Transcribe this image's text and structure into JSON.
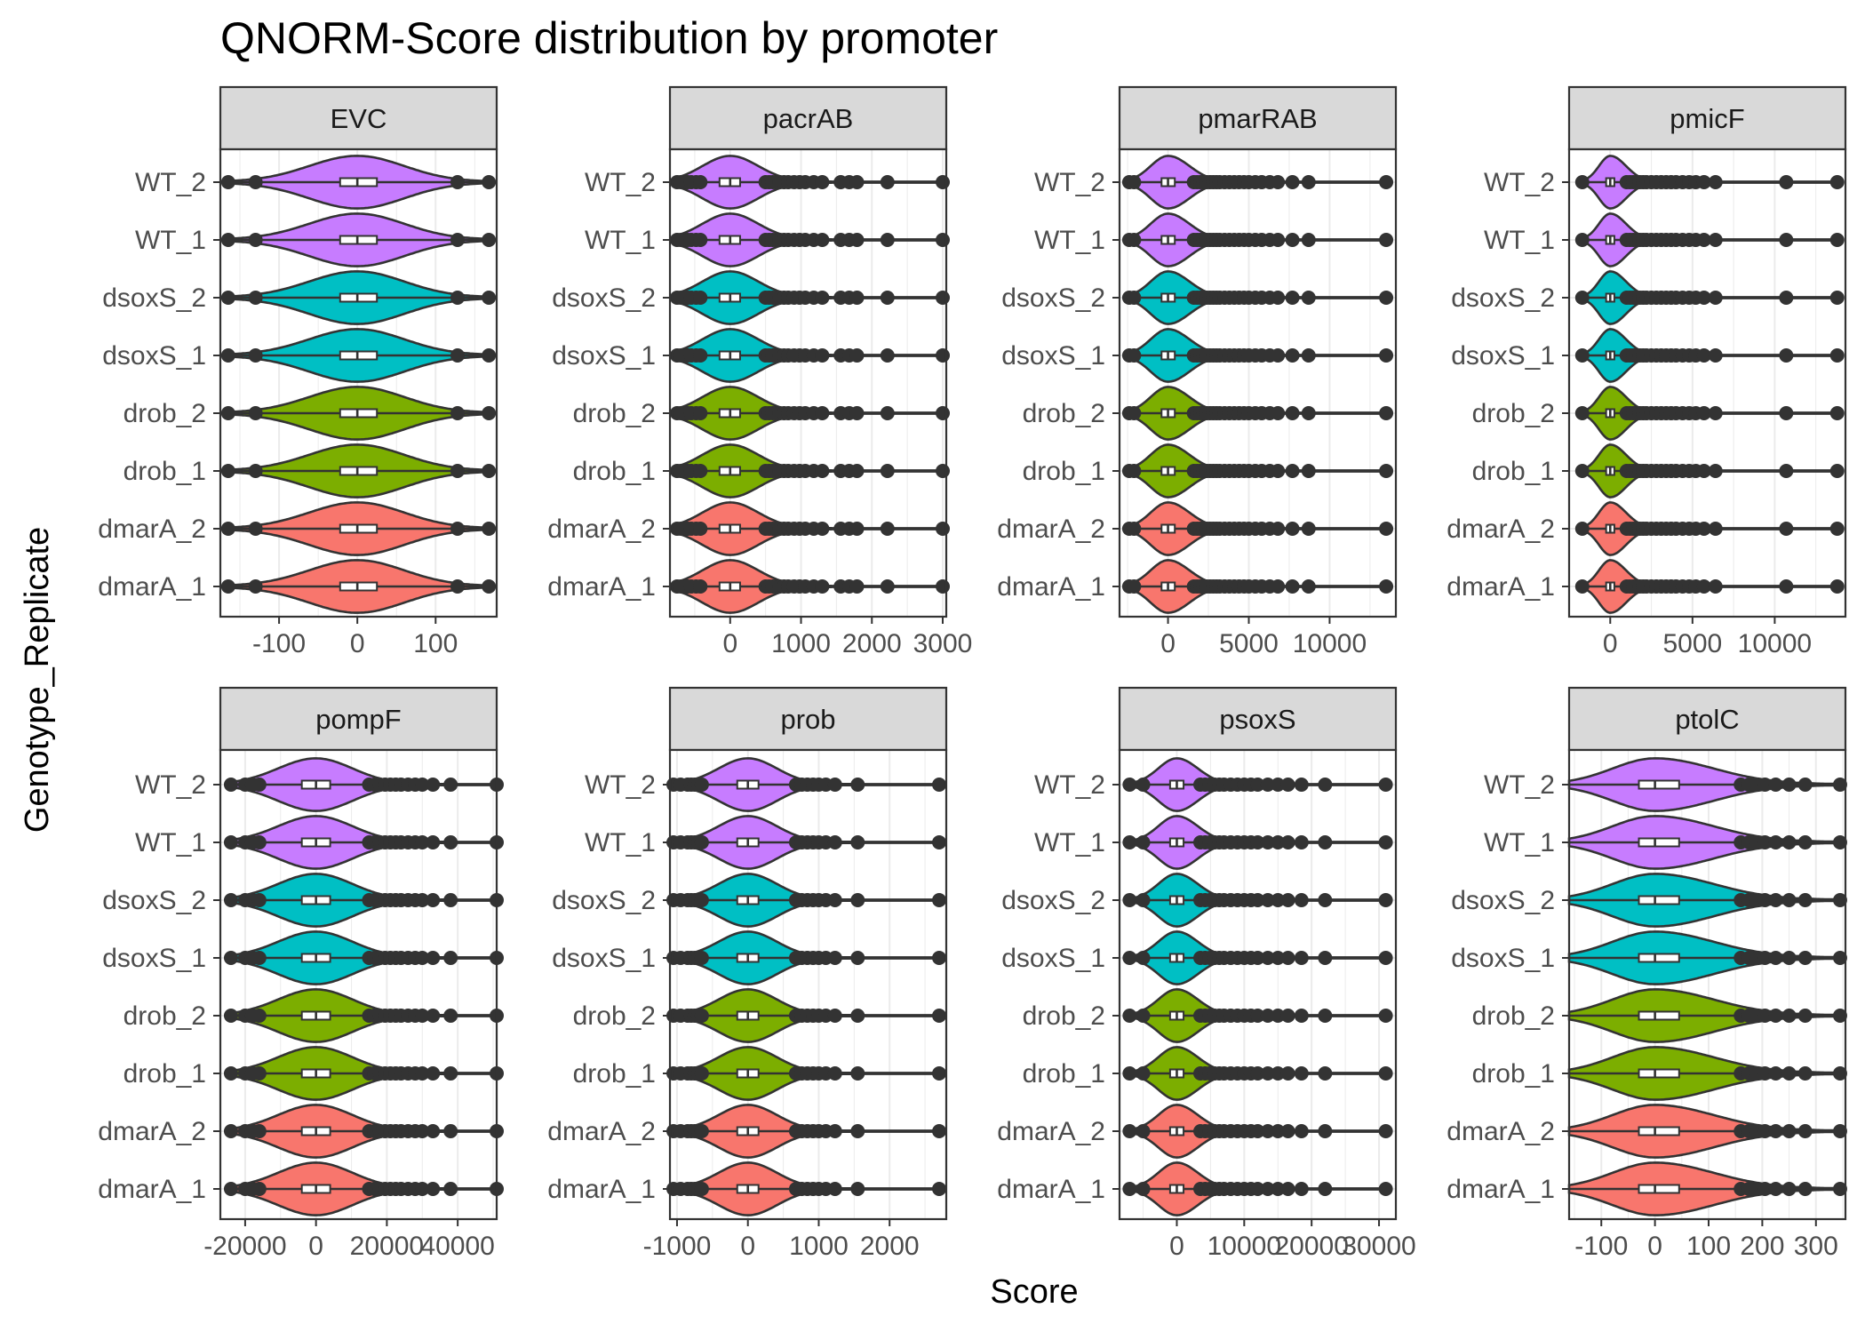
{
  "chart_data": {
    "type": "violin",
    "title": "QNORM-Score distribution by promoter",
    "xlabel": "Score",
    "ylabel": "Genotype_Replicate",
    "categories": [
      "dmarA_1",
      "dmarA_2",
      "drob_1",
      "drob_2",
      "dsoxS_1",
      "dsoxS_2",
      "WT_1",
      "WT_2"
    ],
    "genotype_colors": {
      "dmarA": "#f8766d",
      "drob": "#7cae00",
      "dsoxS": "#00bfc4",
      "WT": "#c77cff"
    },
    "grid": true,
    "legend": "none",
    "panels": [
      {
        "name": "EVC",
        "xlim": [
          -175,
          178
        ],
        "xticks": [
          -100,
          0,
          100
        ],
        "xtick_labels": [
          "-100",
          "0",
          "100"
        ],
        "width_scale": 0.78,
        "violin_lo": -165,
        "violin_hi": 168,
        "q1": -22,
        "median": 0,
        "q3": 25,
        "outliers": [
          -165,
          -130,
          128,
          168
        ]
      },
      {
        "name": "pacrAB",
        "xlim": [
          -850,
          3050
        ],
        "xticks": [
          0,
          1000,
          2000,
          3000
        ],
        "xtick_labels": [
          "0",
          "1000",
          "2000",
          "3000"
        ],
        "width_scale": 0.28,
        "violin_lo": -750,
        "violin_hi": 3000,
        "q1": -150,
        "median": 0,
        "q3": 140,
        "outliers": [
          -750,
          -700,
          -600,
          -550,
          -480,
          -420,
          500,
          550,
          600,
          650,
          700,
          760,
          820,
          900,
          980,
          1060,
          1180,
          1300,
          1560,
          1680,
          1790,
          2220,
          3000
        ]
      },
      {
        "name": "pmarRAB",
        "xlim": [
          -3000,
          14100
        ],
        "xticks": [
          0,
          5000,
          10000
        ],
        "xtick_labels": [
          "0",
          "5000",
          "10000"
        ],
        "width_scale": 0.19,
        "violin_lo": -2400,
        "violin_hi": 13500,
        "q1": -400,
        "median": 0,
        "q3": 420,
        "outliers": [
          -2400,
          -2100,
          1600,
          1800,
          2000,
          2200,
          2400,
          2600,
          2800,
          3000,
          3200,
          3500,
          3800,
          4100,
          4400,
          4700,
          5000,
          5400,
          5800,
          6300,
          6800,
          7700,
          8700,
          13500
        ]
      },
      {
        "name": "pmicF",
        "xlim": [
          -2500,
          14300
        ],
        "xticks": [
          0,
          5000,
          10000
        ],
        "xtick_labels": [
          "0",
          "5000",
          "10000"
        ],
        "width_scale": 0.15,
        "violin_lo": -1700,
        "violin_hi": 13800,
        "q1": -250,
        "median": 0,
        "q3": 250,
        "outliers": [
          -1700,
          1000,
          1200,
          1400,
          1600,
          1800,
          2000,
          2200,
          2500,
          2800,
          3100,
          3400,
          3700,
          4000,
          4400,
          4800,
          5200,
          5700,
          6400,
          10700,
          13800
        ]
      },
      {
        "name": "pompF",
        "xlim": [
          -27000,
          51000
        ],
        "xticks": [
          -20000,
          0,
          20000,
          40000
        ],
        "xtick_labels": [
          "-20000",
          "0",
          "20000",
          "40000"
        ],
        "width_scale": 0.36,
        "violin_lo": -24000,
        "violin_hi": 51000,
        "q1": -4000,
        "median": 0,
        "q3": 4000,
        "outliers": [
          -24000,
          -20000,
          -18000,
          -16000,
          15000,
          16500,
          18000,
          19500,
          21000,
          22500,
          24000,
          26000,
          28000,
          30000,
          33000,
          38000,
          51000
        ]
      },
      {
        "name": "prob",
        "xlim": [
          -1100,
          2800
        ],
        "xticks": [
          -1000,
          0,
          1000,
          2000
        ],
        "xtick_labels": [
          "-1000",
          "0",
          "1000",
          "2000"
        ],
        "width_scale": 0.38,
        "violin_lo": -1050,
        "violin_hi": 2700,
        "q1": -150,
        "median": 0,
        "q3": 150,
        "outliers": [
          -1050,
          -950,
          -850,
          -800,
          -750,
          -700,
          -650,
          680,
          760,
          840,
          920,
          1000,
          1100,
          1230,
          1550,
          2700
        ]
      },
      {
        "name": "psoxS",
        "xlim": [
          -8500,
          32500
        ],
        "xticks": [
          0,
          10000,
          20000,
          30000
        ],
        "xtick_labels": [
          "0",
          "10000",
          "20000",
          "30000"
        ],
        "width_scale": 0.17,
        "violin_lo": -7000,
        "violin_hi": 31000,
        "q1": -1000,
        "median": 0,
        "q3": 1000,
        "outliers": [
          -7000,
          -5000,
          3500,
          4200,
          4900,
          5600,
          6300,
          7000,
          8000,
          9000,
          10000,
          11000,
          12000,
          13500,
          15000,
          16500,
          18500,
          22000,
          31000
        ]
      },
      {
        "name": "ptolC",
        "xlim": [
          -160,
          355
        ],
        "xticks": [
          -100,
          0,
          100,
          200,
          300
        ],
        "xtick_labels": [
          "-100",
          "0",
          "100",
          "200",
          "300"
        ],
        "width_scale": 0.72,
        "violin_lo": -160,
        "violin_hi": 345,
        "q1": -30,
        "median": 0,
        "q3": 45,
        "outliers": [
          160,
          175,
          190,
          205,
          225,
          250,
          280,
          345
        ]
      }
    ]
  }
}
